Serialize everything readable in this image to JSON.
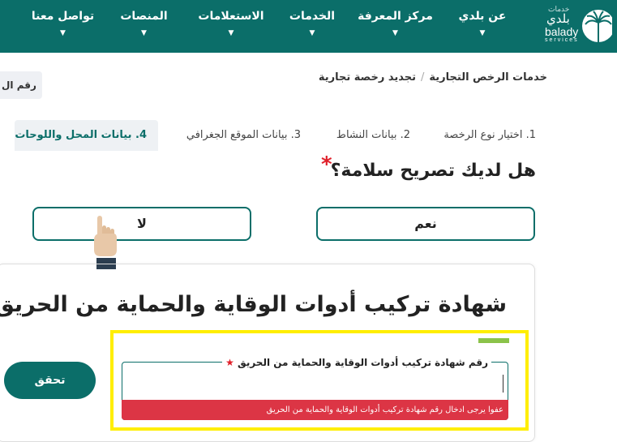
{
  "header": {
    "brand": {
      "ar_top": "خدمات",
      "ar_main": "بلدي",
      "en_main": "balady",
      "en_sub": "services"
    },
    "nav": [
      "عن بلدي",
      "مركز المعرفة",
      "الخدمات",
      "الاستعلامات",
      "المنصات",
      "تواصل معنا"
    ],
    "color": "#0b6e69"
  },
  "breadcrumb": {
    "items": [
      "خدمات الرخص التجارية",
      "تجديد رخصة تجارية"
    ],
    "separator": "/"
  },
  "number_button": "رقم ال",
  "steps": [
    "1. اختيار نوع الرخصة",
    "2. بيانات النشاط",
    "3. بيانات الموقع الجغرافي",
    "4. بيانات المحل واللوحات"
  ],
  "active_step": 4,
  "question": {
    "text": "هل لديك تصريح سلامة؟",
    "required": "*",
    "yes": "نعم",
    "no": "لا"
  },
  "card": {
    "title": "شهادة تركيب أدوات الوقاية والحماية من الحريق",
    "field_label": "رقم شهادة تركيب أدوات الوقاية والحماية من الحريق",
    "required": "★",
    "field_value": "",
    "error": "عفوا يرجى ادخال رقم شهادة تركيب أدوات الوقاية والحماية من الحريق",
    "verify": "تحقق"
  },
  "colors": {
    "primary": "#0b6e69",
    "error": "#dc3545",
    "highlight": "#ffee00",
    "accent": "#8bc34a"
  }
}
